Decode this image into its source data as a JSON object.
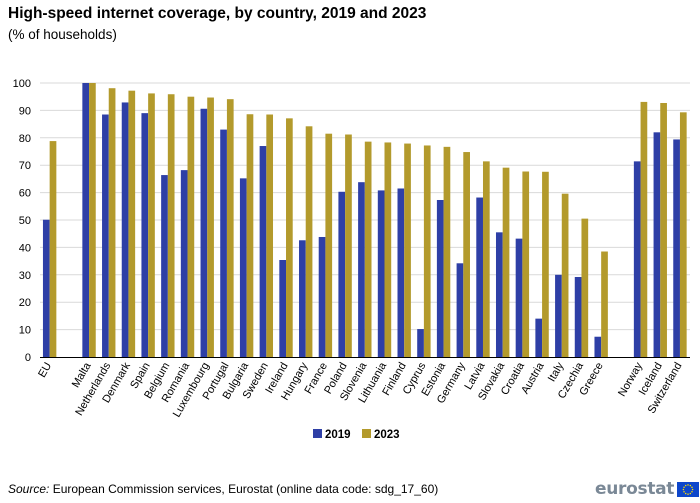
{
  "chart_data": {
    "type": "bar",
    "title": "High-speed internet coverage, by country, 2019 and 2023",
    "subtitle": "(% of households)",
    "xlabel": "",
    "ylabel": "",
    "ylim": [
      0,
      100
    ],
    "yticks": [
      0,
      10,
      20,
      30,
      40,
      50,
      60,
      70,
      80,
      90,
      100
    ],
    "grid": true,
    "legend_position": "bottom-center",
    "categories": [
      "EU",
      "",
      "Malta",
      "Netherlands",
      "Denmark",
      "Spain",
      "Belgium",
      "Romania",
      "Luxembourg",
      "Portugal",
      "Bulgaria",
      "Sweden",
      "Ireland",
      "Hungary",
      "France",
      "Poland",
      "Slovenia",
      "Lithuania",
      "Finland",
      "Cyprus",
      "Estonia",
      "Germany",
      "Latvia",
      "Slovakia",
      "Croatia",
      "Austria",
      "Italy",
      "Czechia",
      "Greece",
      "",
      "Norway",
      "Iceland",
      "Switzerland"
    ],
    "series": [
      {
        "name": "2019",
        "color": "#2e3fa6",
        "values": [
          50.1,
          null,
          100,
          88.5,
          92.9,
          89,
          66.4,
          68.2,
          90.6,
          83,
          65.2,
          77,
          35.4,
          42.6,
          43.8,
          60.3,
          63.8,
          60.8,
          61.5,
          10.2,
          57.3,
          34.2,
          58.2,
          45.5,
          43.2,
          14,
          30,
          29.2,
          7.4,
          null,
          71.4,
          82,
          79.4
        ]
      },
      {
        "name": "2023",
        "color": "#b39a2c",
        "values": [
          78.8,
          null,
          100,
          98.1,
          97.2,
          96.2,
          95.9,
          95,
          94.7,
          94.1,
          88.6,
          88.5,
          87.1,
          84.2,
          81.5,
          81.2,
          78.6,
          78.3,
          77.9,
          77.2,
          76.7,
          74.8,
          71.4,
          69.1,
          67.7,
          67.6,
          59.6,
          50.5,
          38.5,
          null,
          93.1,
          92.7,
          89.3
        ]
      }
    ]
  },
  "source": {
    "label": "Source:",
    "text": " European Commission services, Eurostat (online data code: sdg_17_60)"
  },
  "logo": {
    "text": "eurostat",
    "flag_color": "#0e47cb",
    "star_color": "#ffde00"
  }
}
